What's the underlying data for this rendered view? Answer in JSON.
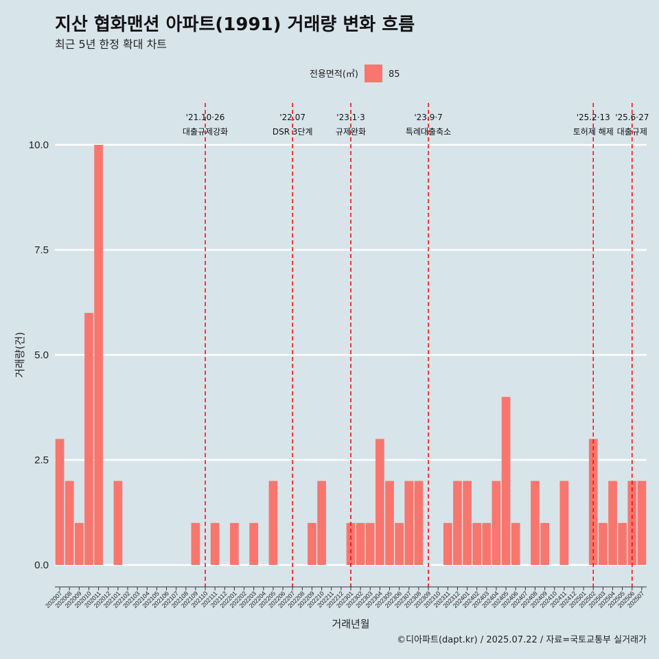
{
  "chart_data": {
    "type": "bar",
    "title": "지산 협화맨션 아파트(1991) 거래량 변화 흐름",
    "subtitle": "최근 5년 한정 확대 차트",
    "xlabel": "거래년월",
    "ylabel": "거래량(건)",
    "caption": "©디아파트(dapt.kr) / 2025.07.22 / 자료=국토교통부 실거래가",
    "legend": {
      "title": "전용면적(㎡)",
      "position": "top",
      "entries": [
        {
          "label": "85",
          "color": "#f8766d"
        }
      ]
    },
    "ylim": [
      0,
      10
    ],
    "yticks": [
      0,
      2.5,
      5,
      7.5,
      10
    ],
    "ytick_labels": [
      "0.0",
      "2.5",
      "5.0",
      "7.5",
      "10.0"
    ],
    "grid": true,
    "categories": [
      "202007",
      "202008",
      "202009",
      "202010",
      "202011",
      "202012",
      "202101",
      "202102",
      "202103",
      "202104",
      "202105",
      "202106",
      "202107",
      "202108",
      "202109",
      "202110",
      "202111",
      "202112",
      "202201",
      "202202",
      "202203",
      "202204",
      "202205",
      "202206",
      "202207",
      "202208",
      "202209",
      "202210",
      "202211",
      "202212",
      "202301",
      "202302",
      "202303",
      "202304",
      "202305",
      "202306",
      "202307",
      "202308",
      "202309",
      "202310",
      "202311",
      "202312",
      "202401",
      "202402",
      "202403",
      "202404",
      "202405",
      "202406",
      "202407",
      "202408",
      "202409",
      "202410",
      "202411",
      "202412",
      "202501",
      "202502",
      "202503",
      "202504",
      "202505",
      "202506",
      "202507"
    ],
    "series": [
      {
        "name": "85",
        "color": "#f8766d",
        "values": [
          3,
          2,
          1,
          6,
          10,
          0,
          2,
          0,
          0,
          0,
          0,
          0,
          0,
          0,
          1,
          0,
          1,
          0,
          1,
          0,
          1,
          0,
          2,
          0,
          0,
          0,
          1,
          2,
          0,
          0,
          1,
          1,
          1,
          3,
          2,
          1,
          2,
          2,
          0,
          0,
          1,
          2,
          2,
          1,
          1,
          2,
          4,
          1,
          0,
          2,
          1,
          0,
          2,
          0,
          0,
          3,
          1,
          2,
          1,
          2,
          2
        ]
      }
    ],
    "annotations": [
      {
        "x": "202110",
        "date": "'21.10·26",
        "text": "대출규제강화"
      },
      {
        "x": "202207",
        "date": "'22.07",
        "text": "DSR 3단계"
      },
      {
        "x": "202301",
        "date": "'23.1·3",
        "text": "규제완화"
      },
      {
        "x": "202309",
        "date": "'23.9·7",
        "text": "특례대출축소"
      },
      {
        "x": "202502",
        "date": "'25.2·13",
        "text": "토허제 해제"
      },
      {
        "x": "202506",
        "date": "'25.6·27",
        "text": "대출규제"
      }
    ]
  }
}
